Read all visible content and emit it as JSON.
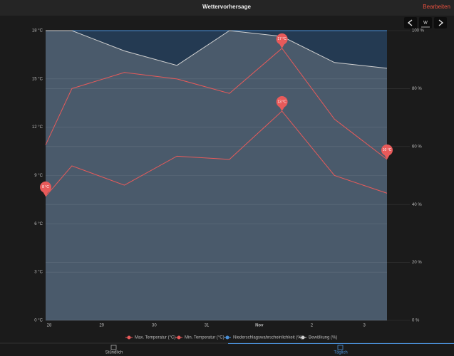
{
  "header": {
    "title": "Wettervorhersage",
    "edit": "Bearbeiten"
  },
  "view_mode": "W",
  "tabs": [
    "Stündlich",
    "Täglich"
  ],
  "active_tab": 1,
  "chart_data": {
    "type": "line",
    "x": [
      0,
      0.5,
      1.5,
      2.5,
      3.5,
      4.5,
      5.5,
      6.5
    ],
    "xlim": [
      0,
      6.5
    ],
    "xticks": [
      {
        "value": 0,
        "label": "28"
      },
      {
        "value": 1,
        "label": "29"
      },
      {
        "value": 2,
        "label": "30"
      },
      {
        "value": 3,
        "label": "31"
      },
      {
        "value": 4,
        "label": "Nov"
      },
      {
        "value": 5,
        "label": "2"
      },
      {
        "value": 6,
        "label": "3"
      }
    ],
    "ylim": [
      0,
      18
    ],
    "yticks": [
      {
        "value": 0,
        "label": "0 °C"
      },
      {
        "value": 3,
        "label": "3 °C"
      },
      {
        "value": 6,
        "label": "6 °C"
      },
      {
        "value": 9,
        "label": "9 °C"
      },
      {
        "value": 12,
        "label": "12 °C"
      },
      {
        "value": 15,
        "label": "15 °C"
      },
      {
        "value": 18,
        "label": "18 °C"
      }
    ],
    "y2lim": [
      0,
      100
    ],
    "y2ticks": [
      {
        "value": 0,
        "label": "0 %"
      },
      {
        "value": 20,
        "label": "20 %"
      },
      {
        "value": 40,
        "label": "40 %"
      },
      {
        "value": 60,
        "label": "60 %"
      },
      {
        "value": 80,
        "label": "80 %"
      },
      {
        "value": 100,
        "label": "100 %"
      }
    ],
    "grid": true,
    "legend": "bottom",
    "series": [
      {
        "name": "Max. Temperatur (°C)",
        "color": "#e85a5a",
        "values": [
          10.9,
          14.4,
          15.4,
          15.0,
          14.1,
          16.9,
          12.5,
          10.0
        ],
        "value_labels": [
          null,
          null,
          null,
          null,
          null,
          "17 °C",
          null,
          "10 °C"
        ]
      },
      {
        "name": "Min. Temperatur (°C)",
        "color": "#e85a5a",
        "values": [
          7.7,
          9.6,
          8.4,
          10.2,
          10.0,
          13.0,
          9.0,
          7.9
        ],
        "value_labels": [
          "8 °C",
          null,
          null,
          null,
          null,
          "13 °C",
          null,
          null
        ]
      },
      {
        "name": "Niederschlagswahrscheinlichkeit (%)",
        "color": "#4a90d9",
        "axis": "y2",
        "fill": "#243a52",
        "values": [
          100,
          100,
          100,
          100,
          100,
          100,
          100,
          100
        ]
      },
      {
        "name": "Bewölkung (%)",
        "color": "#d0d0d0",
        "axis": "y2",
        "fill": "#4a5a6b",
        "values": [
          100,
          100,
          93,
          88,
          100,
          98,
          89,
          87
        ]
      }
    ]
  }
}
